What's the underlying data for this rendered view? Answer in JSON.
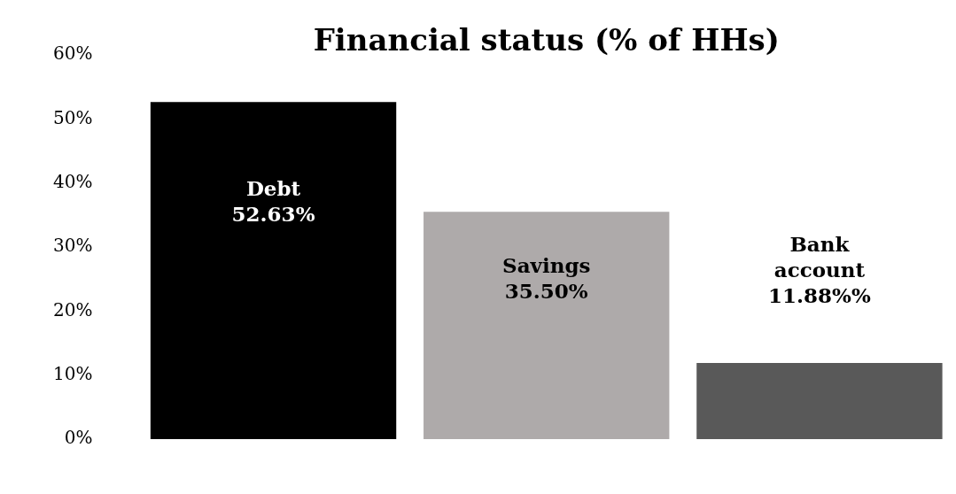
{
  "chart_data": {
    "type": "bar",
    "title": "Financial status (% of HHs)",
    "categories": [
      "Debt",
      "Savings",
      "Bank account"
    ],
    "values": [
      52.63,
      35.5,
      11.88
    ],
    "colors": [
      "#000000",
      "#aeaaaa",
      "#595959"
    ],
    "value_labels": [
      "52.63%",
      "35.50%",
      "11.88%%"
    ],
    "ylim": [
      0,
      60
    ],
    "yticks": [
      {
        "value": 0,
        "label": "0%"
      },
      {
        "value": 10,
        "label": "10%"
      },
      {
        "value": 20,
        "label": "20%"
      },
      {
        "value": 30,
        "label": "30%"
      },
      {
        "value": 40,
        "label": "40%"
      },
      {
        "value": 50,
        "label": "50%"
      },
      {
        "value": 60,
        "label": "60%"
      }
    ],
    "tick_labels": "y",
    "grid": false,
    "legend": false
  }
}
